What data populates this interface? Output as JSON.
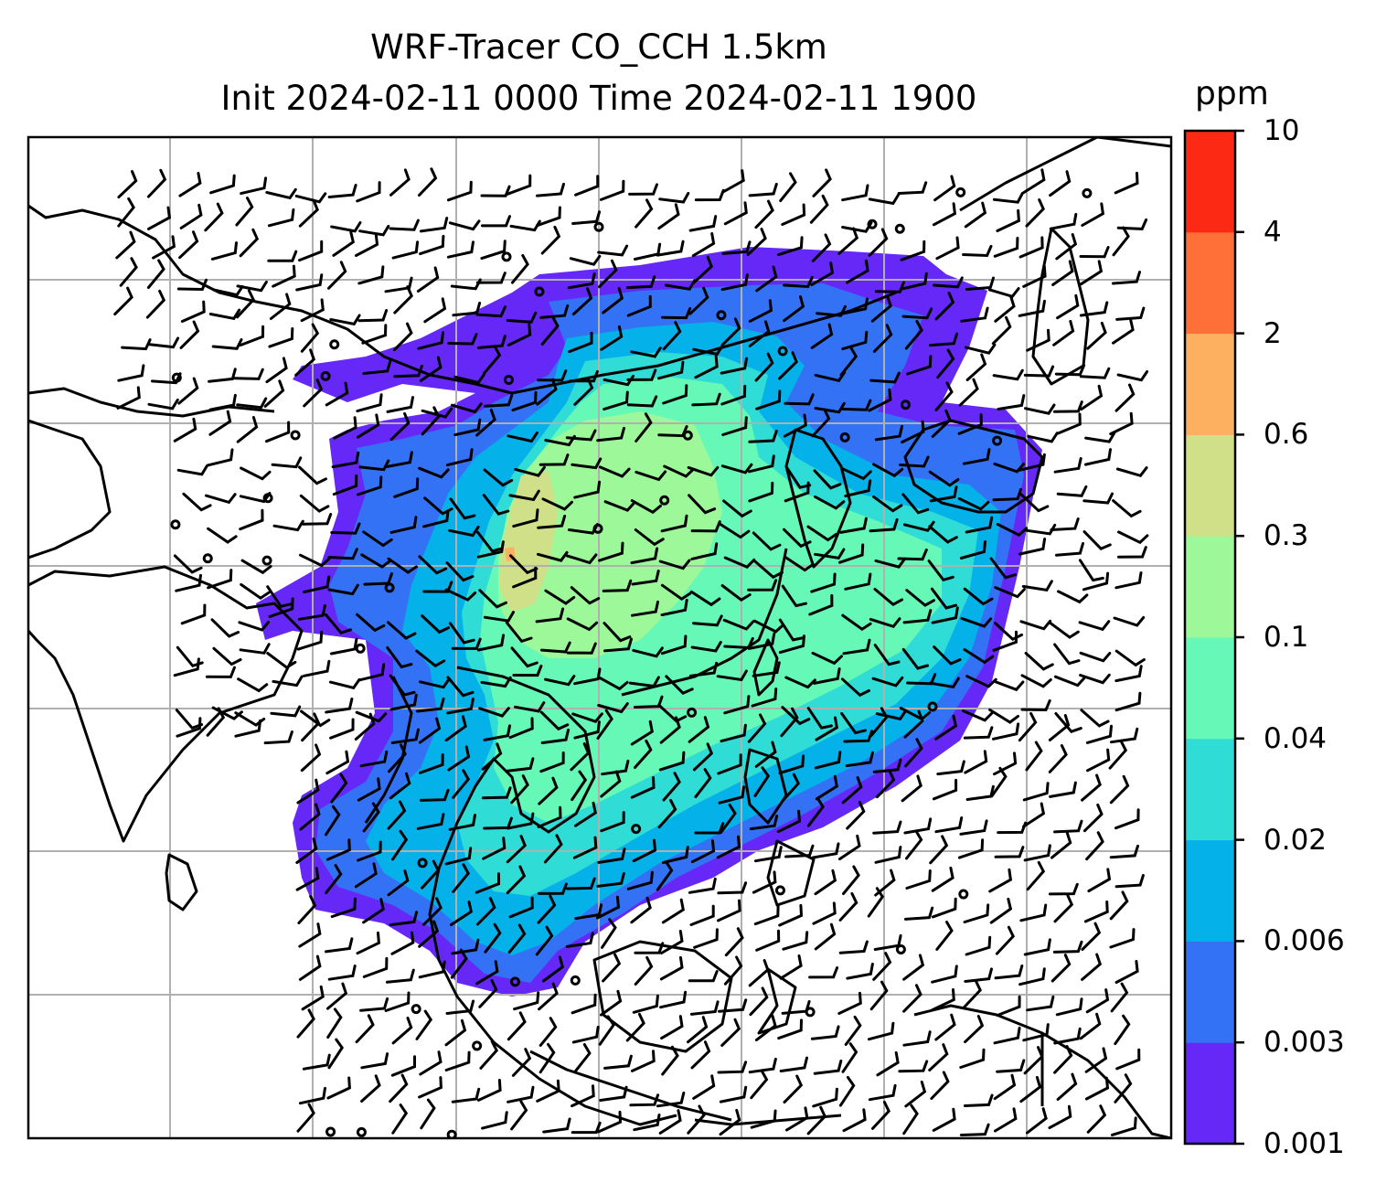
{
  "title": {
    "line1": "WRF-Tracer CO_CCH 1.5km",
    "line2": "Init 2024-02-11 0000 Time 2024-02-11 1900"
  },
  "colorbar": {
    "units": "ppm",
    "levels": [
      "0.001",
      "0.003",
      "0.006",
      "0.02",
      "0.04",
      "0.1",
      "0.3",
      "0.6",
      "2",
      "4",
      "10"
    ],
    "colors": [
      "#6628f7",
      "#3472f5",
      "#05b1e9",
      "#2fdcd6",
      "#66f8b6",
      "#9cf898",
      "#d0e088",
      "#fdb060",
      "#fe7038",
      "#fc2a15"
    ]
  },
  "map": {
    "background": "#ffffff",
    "coastline_color": "#000000",
    "gridline_color": "#b0b0b0",
    "wind_barb_color": "#000000"
  }
}
